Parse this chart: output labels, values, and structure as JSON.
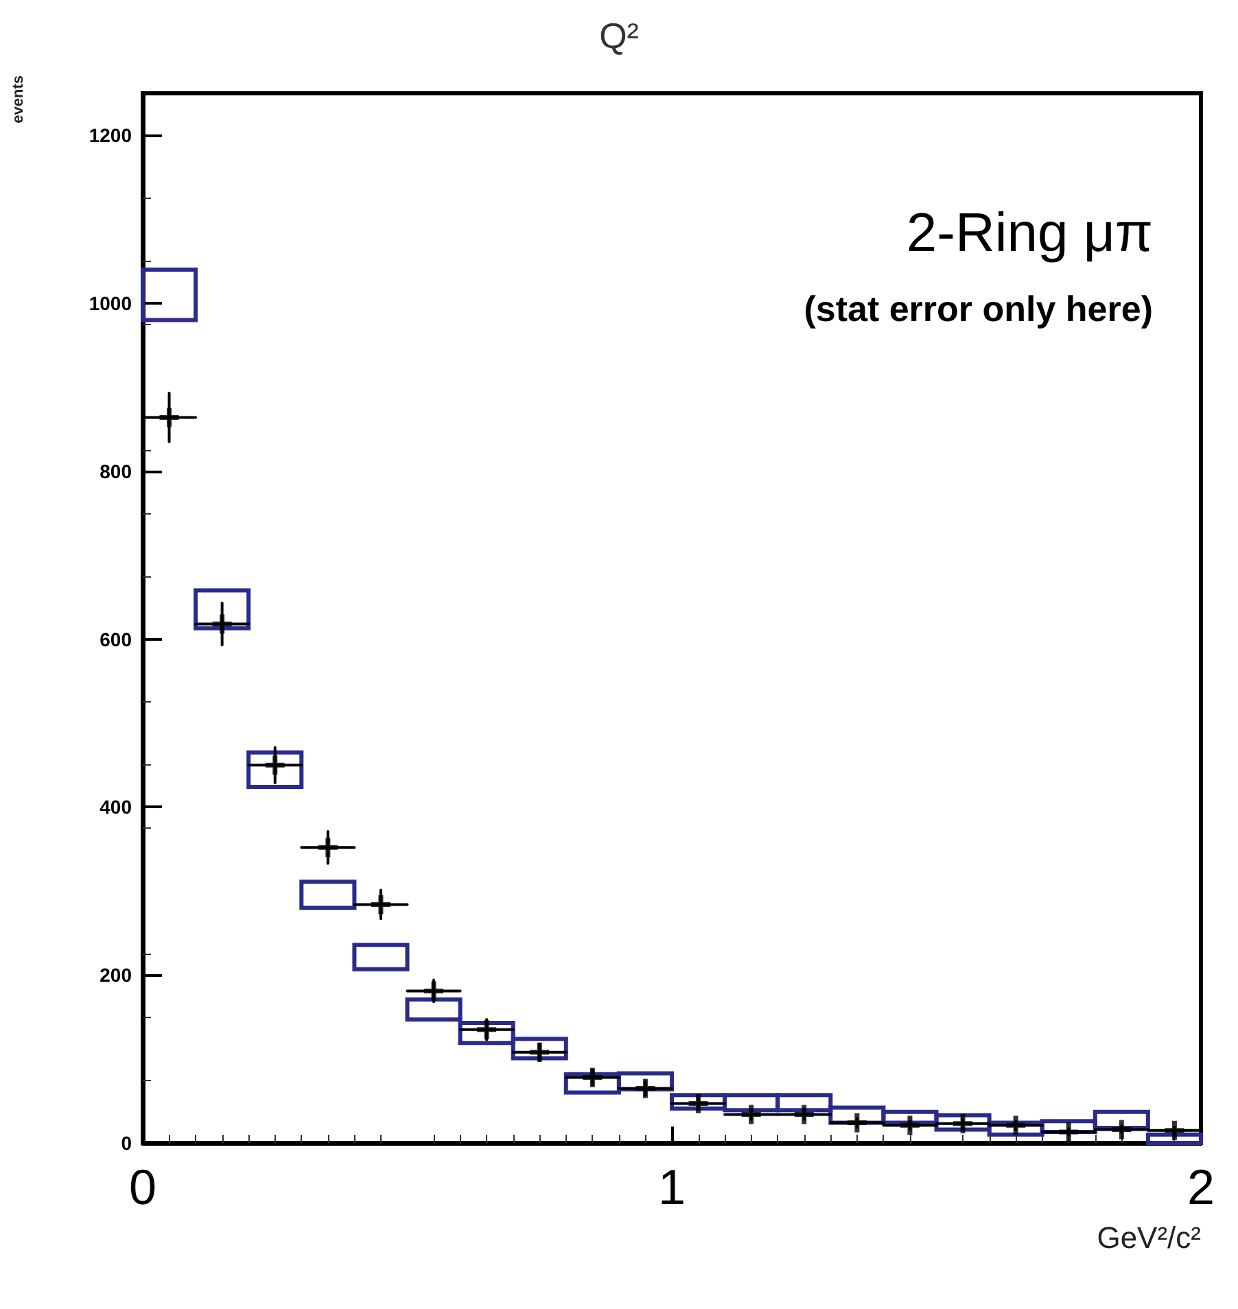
{
  "chart_data": {
    "type": "bar",
    "title": "Q²",
    "ylabel": "events",
    "xlabel": "GeV²/c²",
    "annotations": [
      "2-Ring μπ",
      "(stat error only here)"
    ],
    "x": [
      0.05,
      0.15,
      0.25,
      0.35,
      0.45,
      0.55,
      0.65,
      0.75,
      0.85,
      0.95,
      1.05,
      1.15,
      1.25,
      1.35,
      1.45,
      1.55,
      1.65,
      1.75,
      1.85,
      1.95
    ],
    "xlim": [
      0,
      2
    ],
    "xticks": [
      0,
      1,
      2
    ],
    "ylim": [
      0,
      1250
    ],
    "yticks": [
      0,
      200,
      400,
      600,
      800,
      1000,
      1200
    ],
    "grid": false,
    "series": [
      {
        "color": "#2b2b8c",
        "base": [
          980,
          613,
          424,
          280,
          207,
          147,
          119,
          101,
          60,
          64,
          41,
          39,
          39,
          24,
          24,
          16,
          10,
          13,
          18,
          0
        ],
        "values": [
          60,
          45,
          41,
          31,
          29,
          24,
          24,
          23,
          22,
          19,
          16,
          18,
          18,
          18,
          13,
          17,
          14,
          13,
          19,
          10
        ]
      },
      {
        "type": "scatter",
        "color": "#000000",
        "marker": "cross",
        "values": [
          864,
          618,
          450,
          352,
          284,
          181,
          135,
          108,
          78,
          65,
          47,
          34,
          34,
          24,
          21,
          23,
          21,
          13,
          16,
          15
        ],
        "errors": [
          29,
          25,
          21,
          19,
          17,
          13,
          12,
          10,
          9,
          8,
          7,
          6,
          6,
          5,
          5,
          5,
          5,
          4,
          4,
          4
        ],
        "xerrors": [
          0.05,
          0.05,
          0.05,
          0.05,
          0.05,
          0.05,
          0.05,
          0.05,
          0.05,
          0.05,
          0.05,
          0.05,
          0.05,
          0.05,
          0.05,
          0.05,
          0.05,
          0.05,
          0.05,
          0.05
        ]
      }
    ]
  }
}
